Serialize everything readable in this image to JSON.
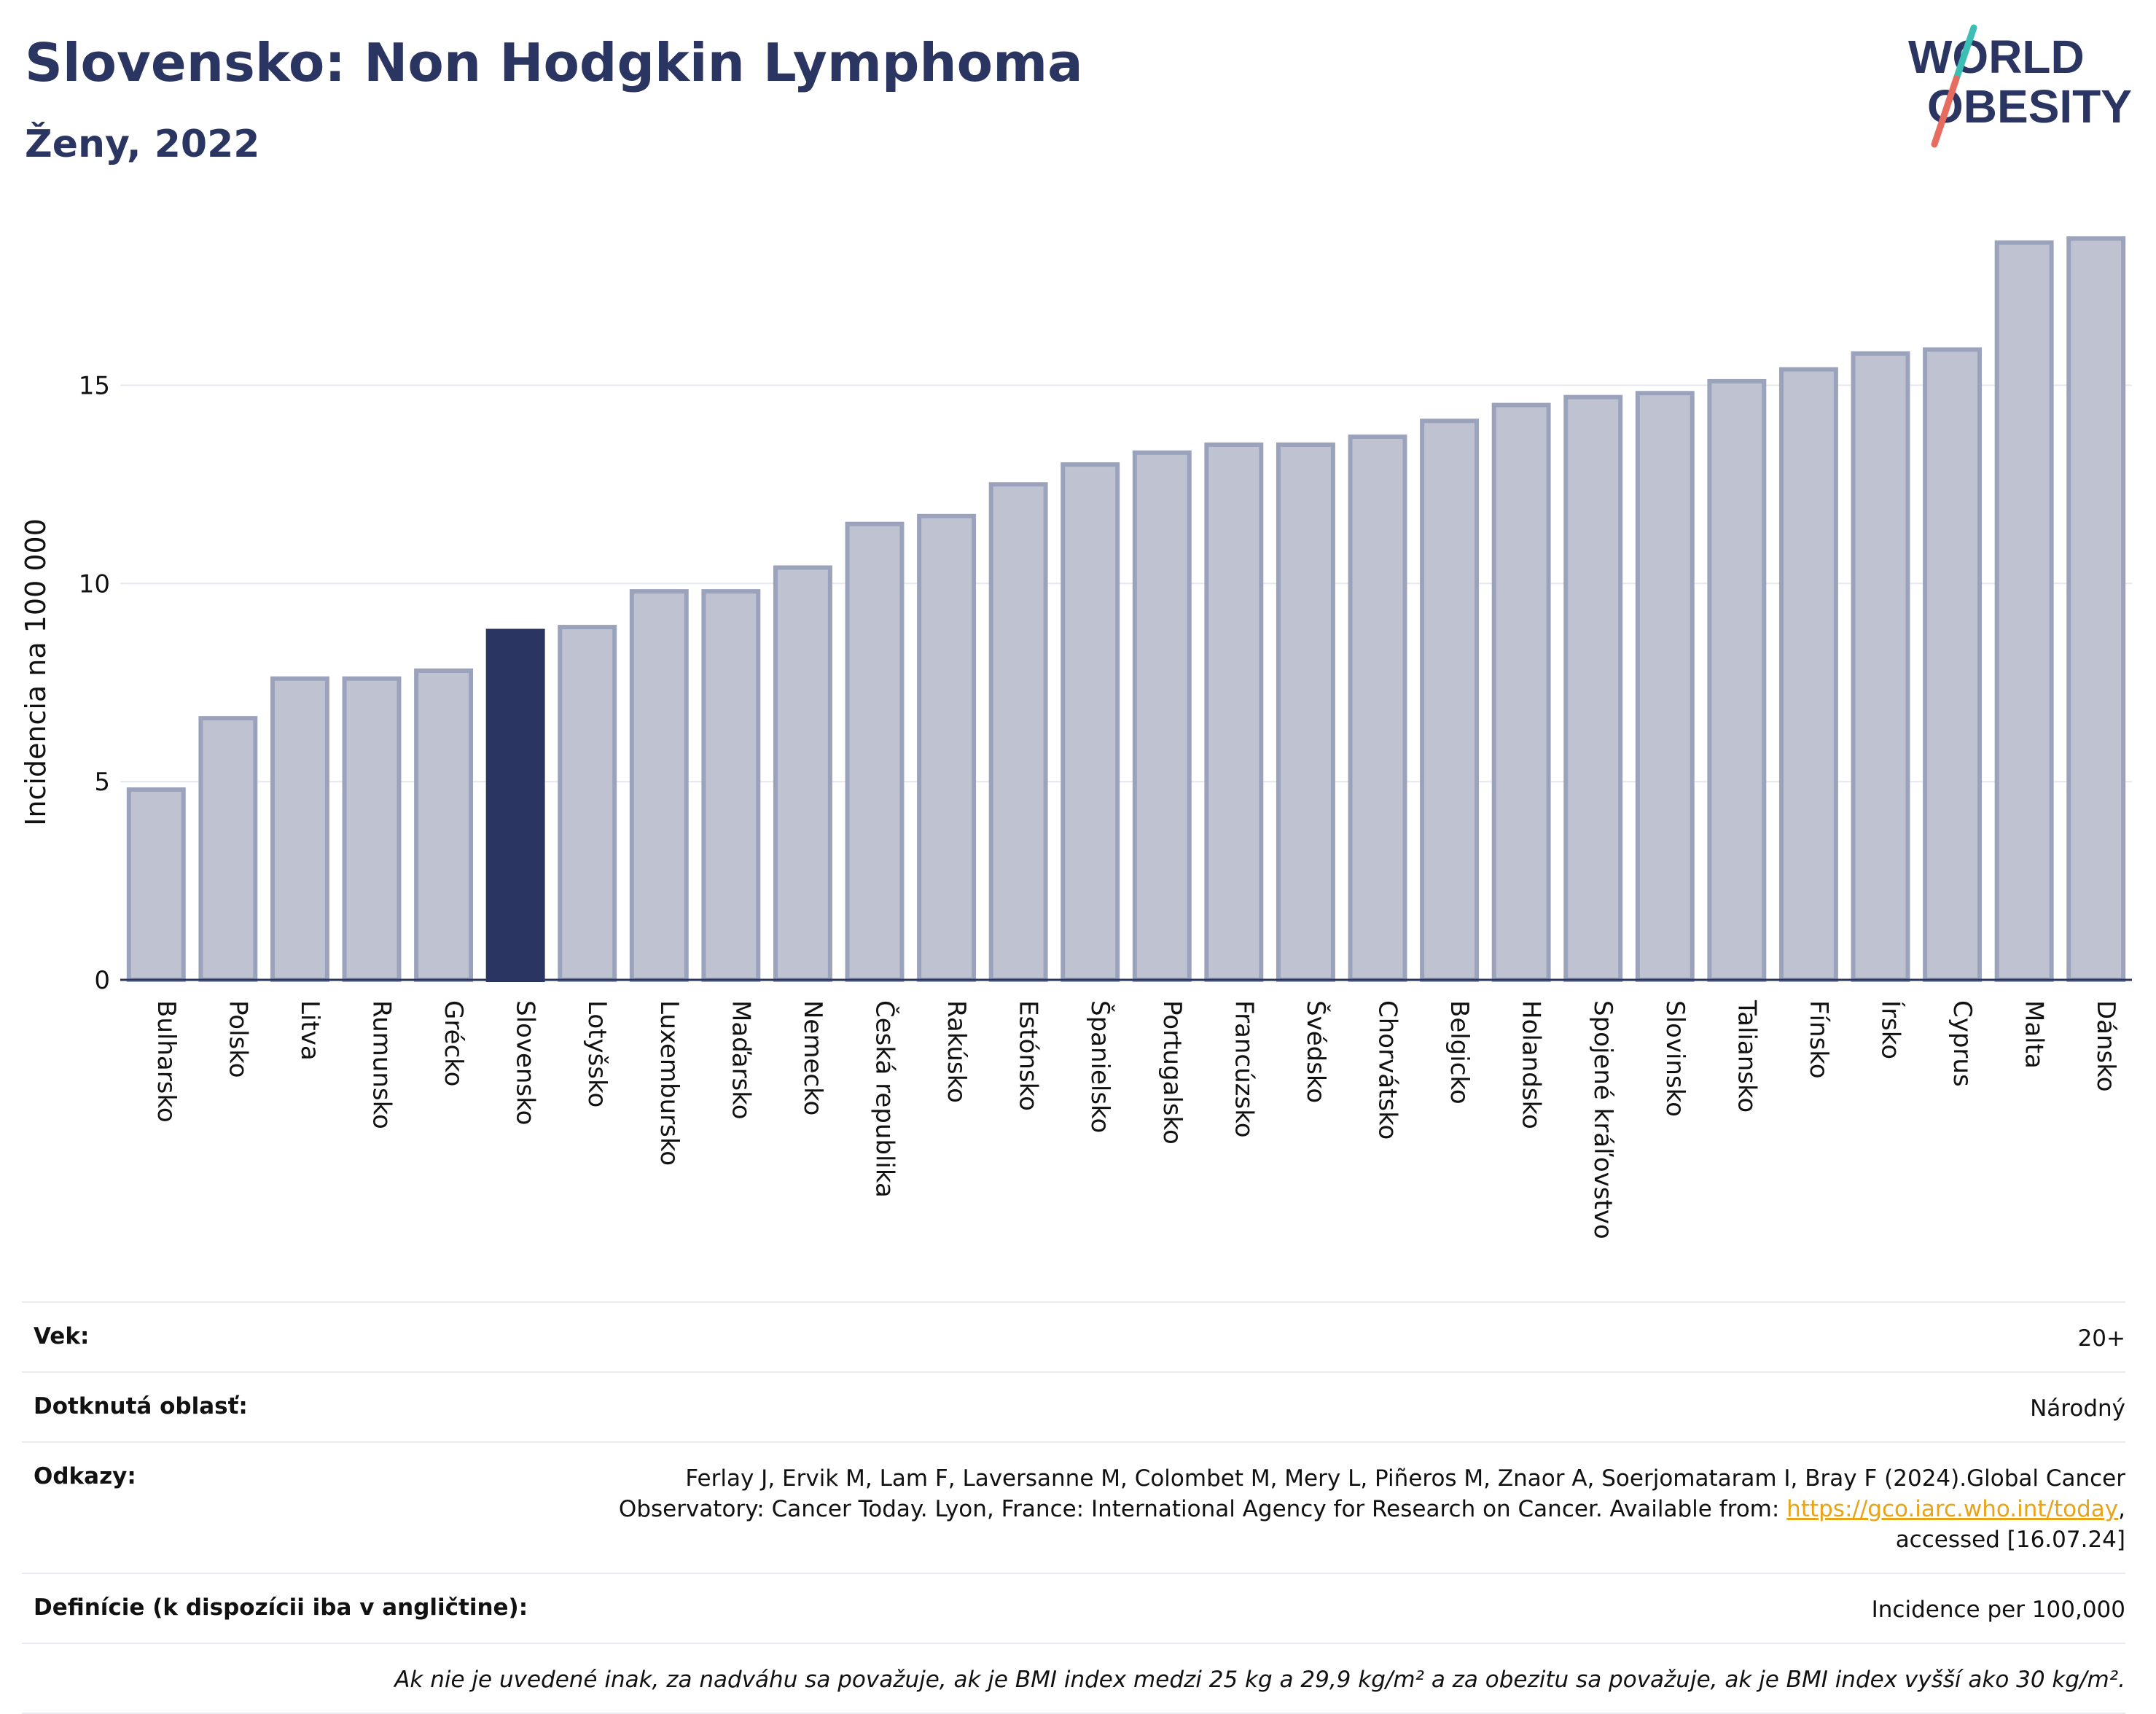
{
  "header": {
    "title": "Slovensko: Non Hodgkin Lymphoma",
    "subtitle": "Ženy, 2022"
  },
  "logo": {
    "line1": "WORLD",
    "line2": "OBESITY",
    "colors": {
      "text": "#2b3561",
      "slash_top": "#3bbfb5",
      "slash_bottom": "#e86b5f"
    }
  },
  "chart_data": {
    "type": "bar",
    "title": "Slovensko: Non Hodgkin Lymphoma",
    "subtitle": "Ženy, 2022",
    "xlabel": "",
    "ylabel": "Incidencia na 100 000",
    "ylim": [
      0,
      19.2
    ],
    "yticks": [
      0,
      5,
      10,
      15
    ],
    "grid": true,
    "highlight": "Slovensko",
    "colors": {
      "bar": "#bfc3d1",
      "bar_border": "#9ba2bb",
      "highlight": "#2b3561",
      "grid": "#e6e8ef",
      "axis": "#2b3561"
    },
    "categories": [
      "Bulharsko",
      "Polsko",
      "Litva",
      "Rumunsko",
      "Grécko",
      "Slovensko",
      "Lotyšsko",
      "Luxembursko",
      "Maďarsko",
      "Nemecko",
      "Česká republika",
      "Rakúsko",
      "Estónsko",
      "Španielsko",
      "Portugalsko",
      "Francúzsko",
      "Švédsko",
      "Chorvátsko",
      "Belgicko",
      "Holandsko",
      "Spojené kráľovstvo",
      "Slovinsko",
      "Taliansko",
      "Fínsko",
      "Írsko",
      "Cyprus",
      "Malta",
      "Dánsko"
    ],
    "values": [
      4.8,
      6.6,
      7.6,
      7.6,
      7.8,
      8.8,
      8.9,
      9.8,
      9.8,
      10.4,
      11.5,
      11.7,
      12.5,
      13.0,
      13.3,
      13.5,
      13.5,
      13.7,
      14.1,
      14.5,
      14.7,
      14.8,
      15.1,
      15.4,
      15.8,
      15.9,
      18.6,
      18.7
    ]
  },
  "meta": {
    "rows": [
      {
        "label": "Vek:",
        "value": "20+"
      },
      {
        "label": "Dotknutá oblasť:",
        "value": "Národný"
      },
      {
        "label": "Definície (k dispozícii iba v angličtine):",
        "value": "Incidence per 100,000"
      }
    ],
    "references": {
      "label": "Odkazy:",
      "text_line1": "Ferlay J, Ervik M, Lam F, Laversanne M, Colombet M, Mery L, Piñeros M, Znaor A, Soerjomataram I, Bray F (2024).Global Cancer",
      "text_line2": "Observatory: Cancer Today. Lyon, France: International Agency for Research on Cancer. Available from: ",
      "link": "https://gco.iarc.who.int/today",
      "after_link": ",",
      "text_line3": "accessed [16.07.24]"
    },
    "note": "Ak nie je uvedené inak, za nadváhu sa považuje, ak je BMI index medzi 25 kg a 29,9 kg/m² a za obezitu sa považuje, ak je BMI index vyšší ako 30 kg/m²."
  }
}
